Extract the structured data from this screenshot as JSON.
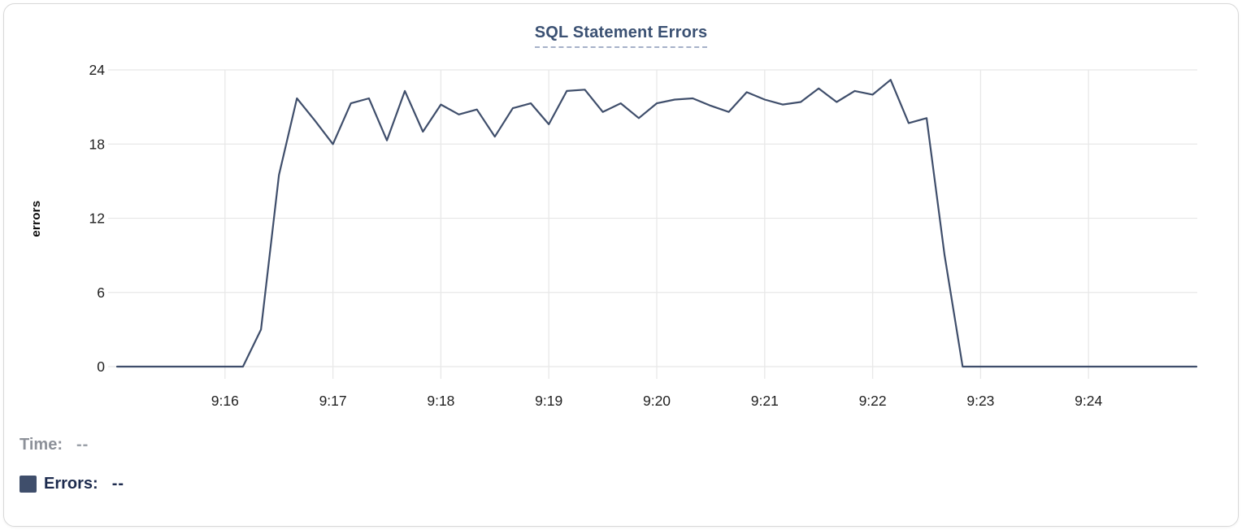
{
  "chart_data": {
    "type": "line",
    "title": "SQL Statement Errors",
    "xlabel": "",
    "ylabel": "errors",
    "ylim": [
      0,
      24
    ],
    "yticks": [
      0,
      6,
      12,
      18,
      24
    ],
    "xticks": [
      "9:16",
      "9:17",
      "9:18",
      "9:19",
      "9:20",
      "9:21",
      "9:22",
      "9:23",
      "9:24"
    ],
    "grid": true,
    "legend_position": "bottom-left",
    "sample_interval_seconds": 10,
    "series": [
      {
        "name": "Errors",
        "color": "#3f4e6b",
        "x": [
          "9:15:00",
          "9:15:10",
          "9:15:20",
          "9:15:30",
          "9:15:40",
          "9:15:50",
          "9:16:00",
          "9:16:10",
          "9:16:20",
          "9:16:30",
          "9:16:40",
          "9:16:50",
          "9:17:00",
          "9:17:10",
          "9:17:20",
          "9:17:30",
          "9:17:40",
          "9:17:50",
          "9:18:00",
          "9:18:10",
          "9:18:20",
          "9:18:30",
          "9:18:40",
          "9:18:50",
          "9:19:00",
          "9:19:10",
          "9:19:20",
          "9:19:30",
          "9:19:40",
          "9:19:50",
          "9:20:00",
          "9:20:10",
          "9:20:20",
          "9:20:30",
          "9:20:40",
          "9:20:50",
          "9:21:00",
          "9:21:10",
          "9:21:20",
          "9:21:30",
          "9:21:40",
          "9:21:50",
          "9:22:00",
          "9:22:10",
          "9:22:20",
          "9:22:30",
          "9:22:40",
          "9:22:50",
          "9:23:00",
          "9:23:10",
          "9:23:20",
          "9:23:30",
          "9:23:40",
          "9:23:50",
          "9:24:00",
          "9:24:10",
          "9:24:20",
          "9:24:30",
          "9:24:40",
          "9:24:50",
          "9:25:00"
        ],
        "values": [
          0,
          0,
          0,
          0,
          0,
          0,
          0,
          0,
          3,
          15.5,
          21.7,
          19.9,
          18,
          21.3,
          21.7,
          18.3,
          22.3,
          19,
          21.2,
          20.4,
          20.8,
          18.6,
          20.9,
          21.3,
          19.6,
          22.3,
          22.4,
          20.6,
          21.3,
          20.1,
          21.3,
          21.6,
          21.7,
          21.1,
          20.6,
          22.2,
          21.6,
          21.2,
          21.4,
          22.5,
          21.4,
          22.3,
          22,
          23.2,
          19.7,
          20.1,
          9,
          0,
          0,
          0,
          0,
          0,
          0,
          0,
          0,
          0,
          0,
          0,
          0,
          0,
          0
        ]
      }
    ]
  },
  "tooltip": {
    "time_label": "Time:",
    "time_value": "--",
    "errors_label": "Errors:",
    "errors_value": "--"
  },
  "colors": {
    "line": "#3f4e6b",
    "grid": "#e8e8e8",
    "tick": "#1f1f1f",
    "title": "#3b5173",
    "title_underline": "#a6b1c9",
    "muted": "#8d9199",
    "muted_value": "#9aa0a8",
    "dark_navy": "#1d2b4e",
    "card_border": "#d8d8d8"
  }
}
